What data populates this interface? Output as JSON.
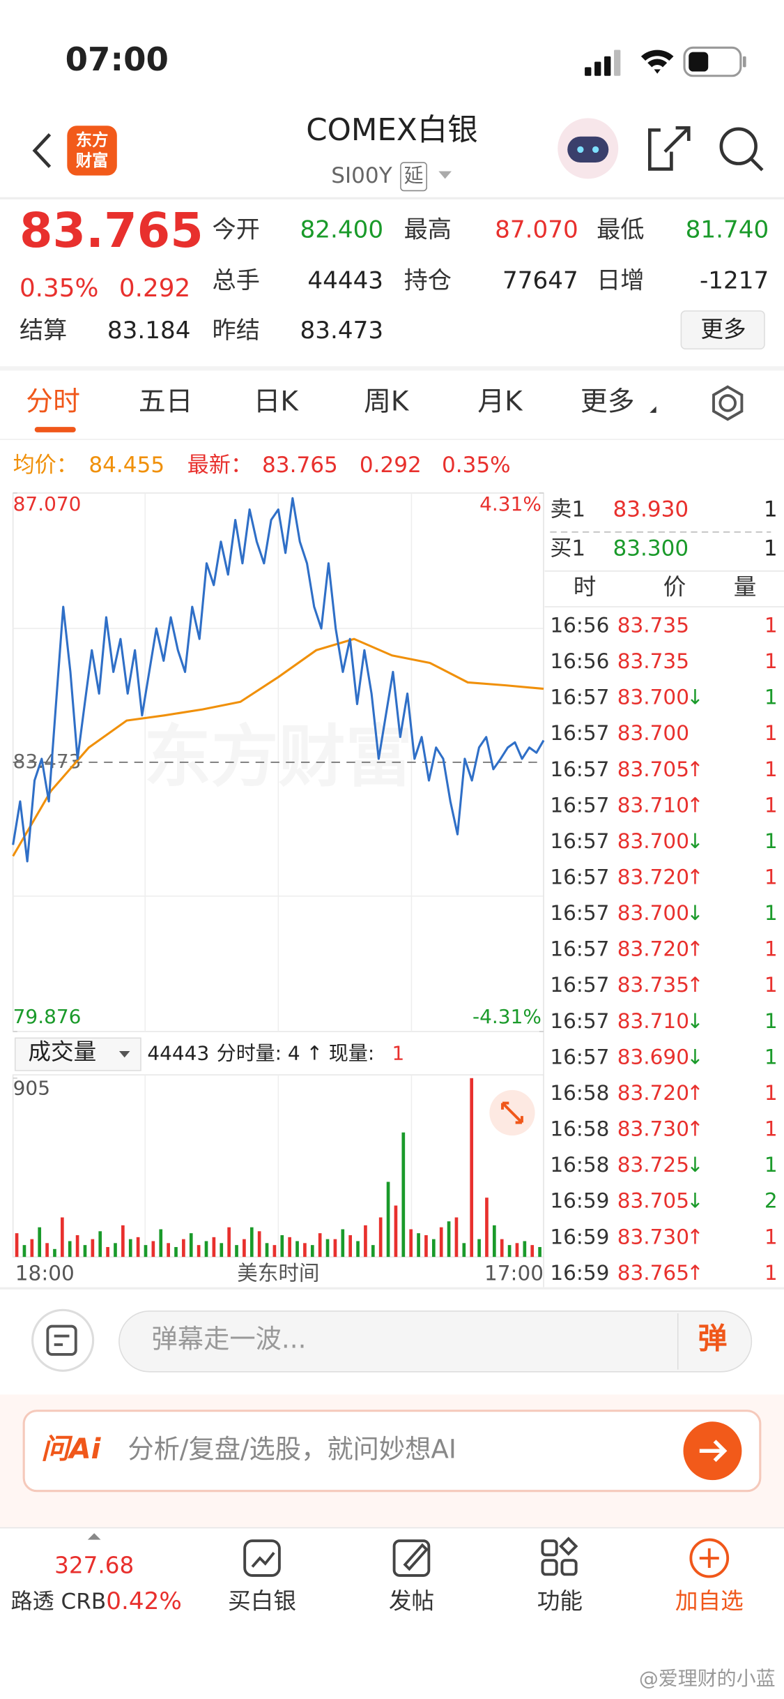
{
  "status_bar": {
    "time": "07:00"
  },
  "header": {
    "logo": [
      "东方",
      "财富"
    ],
    "title": "COMEX白银",
    "code": "SI00Y",
    "badge": "延"
  },
  "quote": {
    "price": "83.765",
    "change_pct": "0.35%",
    "change": "0.292",
    "fields": [
      {
        "label": "今开",
        "value": "82.400",
        "color": "#1a9a2a"
      },
      {
        "label": "最高",
        "value": "87.070",
        "color": "#e8302d"
      },
      {
        "label": "最低",
        "value": "81.740",
        "color": "#1a9a2a"
      },
      {
        "label": "总手",
        "value": "44443",
        "color": "#222222"
      },
      {
        "label": "持仓",
        "value": "77647",
        "color": "#222222"
      },
      {
        "label": "日增",
        "value": "-1217",
        "color": "#222222"
      }
    ],
    "settle": [
      {
        "label": "结算",
        "value": "83.184"
      },
      {
        "label": "昨结",
        "value": "83.473"
      }
    ],
    "more": "更多"
  },
  "tabs": {
    "items": [
      "分时",
      "五日",
      "日K",
      "周K",
      "月K",
      "更多"
    ],
    "active": 0
  },
  "chart_data": [
    {
      "type": "line",
      "legend": {
        "avg_label": "均价：",
        "avg": "84.455",
        "last_label": "最新：",
        "last": "83.765",
        "change": "0.292",
        "change_pct": "0.35%"
      },
      "watermark": "东方财富",
      "ylim": [
        79.876,
        87.07
      ],
      "yticks": [
        {
          "value": 87.07,
          "label": "87.070"
        },
        {
          "value": 83.473,
          "label": "83.473"
        },
        {
          "value": 79.876,
          "label": "79.876"
        }
      ],
      "y2lim": [
        -4.31,
        4.31
      ],
      "y2ticks": [
        {
          "value": 4.31,
          "label": "4.31%"
        },
        {
          "value": -4.31,
          "label": "-4.31%"
        }
      ],
      "series": [
        {
          "color": "#2f6fc7",
          "values": [
            82.37,
            82.95,
            82.15,
            83.23,
            83.52,
            82.95,
            84.25,
            85.55,
            84.68,
            83.52,
            84.25,
            84.97,
            84.39,
            85.41,
            84.68,
            85.12,
            84.39,
            84.97,
            84.1,
            84.68,
            85.26,
            84.83,
            85.41,
            84.97,
            84.68,
            85.55,
            85.12,
            86.13,
            85.84,
            86.42,
            85.98,
            86.71,
            86.13,
            86.85,
            86.42,
            86.13,
            86.71,
            86.85,
            86.27,
            87.0,
            86.42,
            86.13,
            85.55,
            85.26,
            86.13,
            85.26,
            84.68,
            85.12,
            84.25,
            84.97,
            84.39,
            83.52,
            84.1,
            84.68,
            83.81,
            84.39,
            83.52,
            83.81,
            83.23,
            83.67,
            83.52,
            82.95,
            82.51,
            83.52,
            83.23,
            83.67,
            83.81,
            83.38,
            83.52,
            83.67,
            83.74,
            83.52,
            83.67,
            83.6,
            83.765
          ]
        },
        {
          "color": "#f0900a",
          "values": [
            82.22,
            83.09,
            83.67,
            84.03,
            84.1,
            84.18,
            84.28,
            84.61,
            84.97,
            85.12,
            84.9,
            84.8,
            84.54,
            84.5,
            84.455
          ]
        }
      ]
    },
    {
      "type": "bar",
      "selector": "成交量",
      "total": "44443",
      "info": "分时量: 4 ↑ 现量:",
      "now": "1",
      "ylim": [
        0,
        905
      ],
      "yticks": [
        905
      ],
      "xlabel": "美东时间",
      "x_start": "18:00",
      "x_end": "17:00",
      "series": [
        {
          "color": "#e8302d",
          "values": [
            120,
            90,
            70,
            200,
            110,
            90,
            50,
            160,
            100,
            80,
            70,
            90,
            60,
            100,
            150,
            90,
            130,
            60,
            100,
            70,
            120,
            90,
            110,
            160,
            200,
            260,
            140,
            110,
            150,
            200,
            905,
            300,
            90,
            70,
            60
          ]
        },
        {
          "color": "#1a9a2a",
          "values": [
            60,
            150,
            40,
            80,
            60,
            130,
            70,
            90,
            60,
            140,
            50,
            120,
            80,
            70,
            60,
            150,
            70,
            110,
            80,
            60,
            90,
            140,
            80,
            60,
            380,
            630,
            120,
            90,
            180,
            70,
            90,
            160,
            60,
            80,
            50
          ]
        }
      ]
    }
  ],
  "book": {
    "ask": {
      "label": "卖1",
      "price": "83.930",
      "qty": "1"
    },
    "bid": {
      "label": "买1",
      "price": "83.300",
      "qty": "1"
    },
    "headers": [
      "时",
      "价",
      "量"
    ],
    "trades": [
      {
        "time": "16:56",
        "price": "83.735",
        "qty": "1"
      },
      {
        "time": "16:56",
        "price": "83.735",
        "qty": "1"
      },
      {
        "time": "16:57",
        "price": "83.700",
        "arrow": "↓",
        "qty": "1"
      },
      {
        "time": "16:57",
        "price": "83.700",
        "qty": "1"
      },
      {
        "time": "16:57",
        "price": "83.705",
        "arrow": "↑",
        "qty": "1"
      },
      {
        "time": "16:57",
        "price": "83.710",
        "arrow": "↑",
        "qty": "1"
      },
      {
        "time": "16:57",
        "price": "83.700",
        "arrow": "↓",
        "qty": "1"
      },
      {
        "time": "16:57",
        "price": "83.720",
        "arrow": "↑",
        "qty": "1"
      },
      {
        "time": "16:57",
        "price": "83.700",
        "arrow": "↓",
        "qty": "1"
      },
      {
        "time": "16:57",
        "price": "83.720",
        "arrow": "↑",
        "qty": "1"
      },
      {
        "time": "16:57",
        "price": "83.735",
        "arrow": "↑",
        "qty": "1"
      },
      {
        "time": "16:57",
        "price": "83.710",
        "arrow": "↓",
        "qty": "1"
      },
      {
        "time": "16:57",
        "price": "83.690",
        "arrow": "↓",
        "qty": "1"
      },
      {
        "time": "16:58",
        "price": "83.720",
        "arrow": "↑",
        "qty": "1"
      },
      {
        "time": "16:58",
        "price": "83.730",
        "arrow": "↑",
        "qty": "1"
      },
      {
        "time": "16:58",
        "price": "83.725",
        "arrow": "↓",
        "qty": "1"
      },
      {
        "time": "16:59",
        "price": "83.705",
        "arrow": "↓",
        "qty": "2"
      },
      {
        "time": "16:59",
        "price": "83.730",
        "arrow": "↑",
        "qty": "1"
      },
      {
        "time": "16:59",
        "price": "83.765",
        "arrow": "↑",
        "qty": "1"
      }
    ]
  },
  "comment": {
    "placeholder": "弹幕走一波...",
    "button": "弹"
  },
  "ai": {
    "logo": "问Ai",
    "placeholder": "分析/复盘/选股，就问妙想AI"
  },
  "bottom_nav": {
    "index_value": "327.68",
    "index_name": "路透 CRB",
    "index_change": "0.42%",
    "items": [
      "买白银",
      "发帖",
      "功能",
      "加自选"
    ]
  },
  "watermark": "@爱理财的小蓝"
}
